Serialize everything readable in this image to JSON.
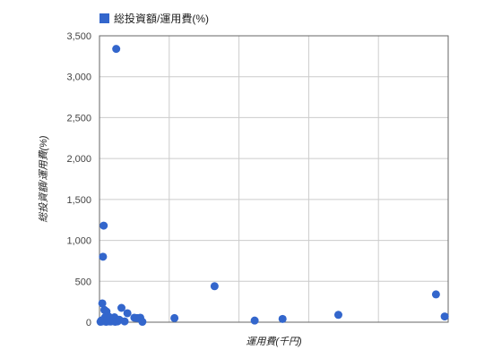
{
  "chart_data": {
    "type": "scatter",
    "title": "",
    "legend": {
      "position": "top-left",
      "entries": [
        "総投資額/運用費(%)"
      ]
    },
    "xlabel": "運用費(千円)",
    "ylabel": "総投資額/運用費(%)",
    "ylim": [
      0,
      3500
    ],
    "yticks": [
      0,
      500,
      1000,
      1500,
      2000,
      2500,
      3000,
      3500
    ],
    "ytick_labels": [
      "0",
      "500",
      "1,000",
      "1,500",
      "2,000",
      "2,500",
      "3,000",
      "3,500"
    ],
    "xlim": [
      0,
      1000
    ],
    "xticks": [
      0,
      200,
      400,
      600,
      800,
      1000
    ],
    "xtick_labels": [
      "",
      "",
      "",
      "",
      "",
      ""
    ],
    "grid": true,
    "series": [
      {
        "name": "総投資額/運用費(%)",
        "color": "#3366cc",
        "points": [
          [
            3,
            5
          ],
          [
            5,
            20
          ],
          [
            8,
            230
          ],
          [
            8,
            10
          ],
          [
            10,
            800
          ],
          [
            11,
            30
          ],
          [
            12,
            1180
          ],
          [
            13,
            15
          ],
          [
            14,
            150
          ],
          [
            16,
            60
          ],
          [
            18,
            25
          ],
          [
            19,
            5
          ],
          [
            20,
            130
          ],
          [
            22,
            40
          ],
          [
            24,
            20
          ],
          [
            26,
            70
          ],
          [
            28,
            10
          ],
          [
            30,
            50
          ],
          [
            32,
            8
          ],
          [
            35,
            30
          ],
          [
            38,
            15
          ],
          [
            40,
            20
          ],
          [
            43,
            60
          ],
          [
            45,
            5
          ],
          [
            48,
            3340
          ],
          [
            52,
            10
          ],
          [
            57,
            30
          ],
          [
            63,
            175
          ],
          [
            72,
            10
          ],
          [
            80,
            110
          ],
          [
            100,
            55
          ],
          [
            108,
            50
          ],
          [
            117,
            55
          ],
          [
            123,
            5
          ],
          [
            215,
            50
          ],
          [
            330,
            440
          ],
          [
            445,
            20
          ],
          [
            525,
            40
          ],
          [
            685,
            90
          ],
          [
            965,
            340
          ],
          [
            990,
            70
          ]
        ]
      }
    ]
  }
}
